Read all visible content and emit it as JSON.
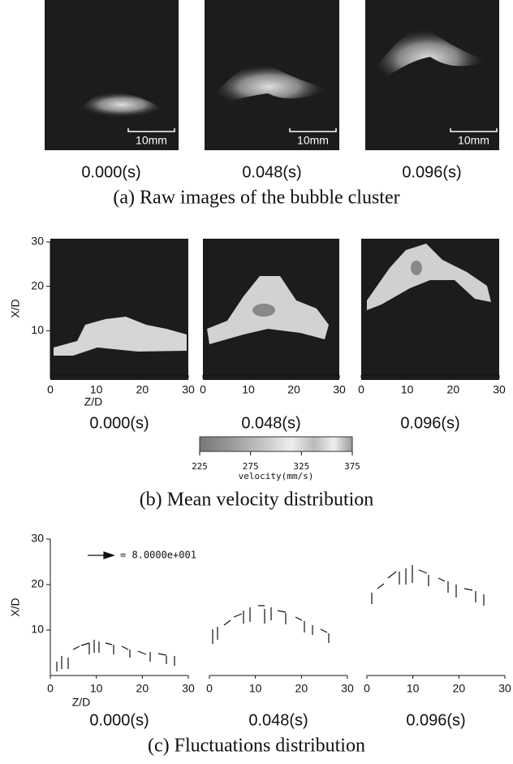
{
  "panel_a": {
    "scale_bar": "10mm",
    "times": [
      "0.000(s)",
      "0.048(s)",
      "0.096(s)"
    ],
    "caption": "(a) Raw images of the bubble cluster"
  },
  "panel_b": {
    "y_label": "X/D",
    "x_label": "Z/D",
    "ylim": [
      0,
      30
    ],
    "yticks": [
      10,
      20,
      30
    ],
    "xticks": [
      0,
      10,
      20,
      30
    ],
    "times": [
      "0.000(s)",
      "0.048(s)",
      "0.096(s)"
    ],
    "colorbar": {
      "ticks": [
        225,
        275,
        325,
        375
      ],
      "label": "velocity(mm/s)"
    },
    "caption": "(b) Mean velocity distribution"
  },
  "panel_c": {
    "y_label": "X/D",
    "x_label": "Z/D",
    "ylim": [
      0,
      30
    ],
    "yticks": [
      10,
      20,
      30
    ],
    "xticks": [
      0,
      10,
      20,
      30
    ],
    "legend": "= 8.0000e+001",
    "times": [
      "0.000(s)",
      "0.048(s)",
      "0.096(s)"
    ],
    "caption": "(c) Fluctuations distribution"
  }
}
